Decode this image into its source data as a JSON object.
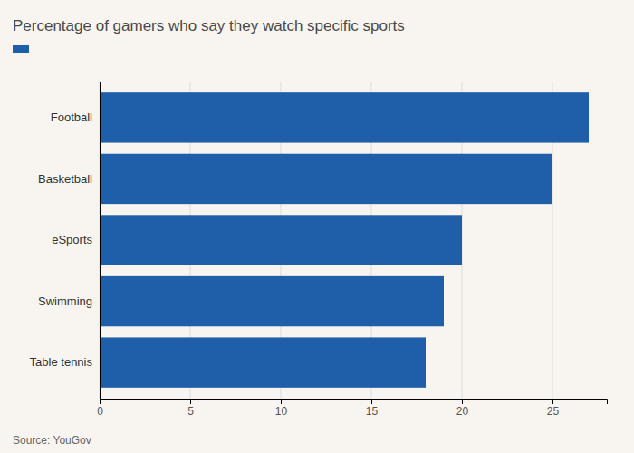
{
  "chart_data": {
    "type": "bar",
    "orientation": "horizontal",
    "title": "Percentage of gamers who say they watch specific sports",
    "annotations": [
      "Source: YouGov"
    ],
    "categories": [
      "Table tennis",
      "Swimming",
      "eSports",
      "Basketball",
      "Football"
    ],
    "values": [
      18,
      19,
      20,
      25,
      27
    ],
    "color": "#1F5EA8",
    "xlim": [
      0,
      28
    ],
    "xticks": [
      0,
      5,
      10,
      15,
      20,
      25
    ],
    "grid": true
  }
}
